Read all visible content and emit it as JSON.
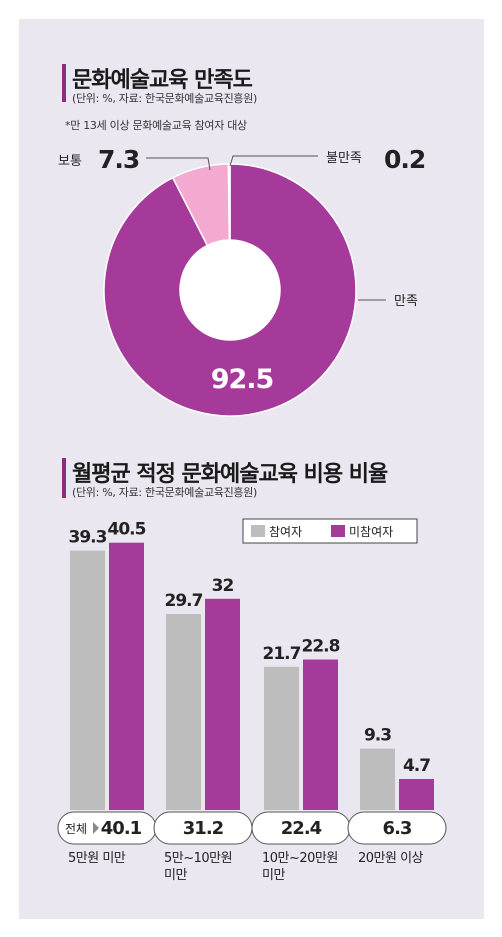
{
  "colors": {
    "purple": "#a63a9b",
    "pink": "#f3a9d0",
    "grey": "#bdbdbd",
    "panel": "#eae7f1",
    "accent": "#8a2d82"
  },
  "chart_data": [
    {
      "type": "pie",
      "title": "문화예술교육 만족도",
      "subtitle": "(단위: %, 자료: 한국문화예술교육진흥원)",
      "note": "*만 13세 이상 문화예술교육 참여자 대상",
      "slices": [
        {
          "label": "만족",
          "value": 92.5,
          "color": "#a63a9b"
        },
        {
          "label": "보통",
          "value": 7.3,
          "color": "#f3a9d0"
        },
        {
          "label": "불만족",
          "value": 0.2,
          "color": "#ffffff"
        }
      ]
    },
    {
      "type": "bar",
      "title": "월평균 적정 문화예술교육 비용 비율",
      "subtitle": "(단위: %, 자료: 한국문화예술교육진흥원)",
      "categories": [
        "5만원 미만",
        "5만~10만원 미만",
        "10만~20만원 미만",
        "20만원 이상"
      ],
      "series": [
        {
          "name": "참여자",
          "color": "#bdbdbd",
          "values": [
            39.3,
            29.7,
            21.7,
            9.3
          ]
        },
        {
          "name": "미참여자",
          "color": "#a63a9b",
          "values": [
            40.5,
            32.0,
            22.8,
            4.7
          ]
        }
      ],
      "totals_label": "전체",
      "totals": [
        40.1,
        31.2,
        22.4,
        6.3
      ]
    }
  ]
}
